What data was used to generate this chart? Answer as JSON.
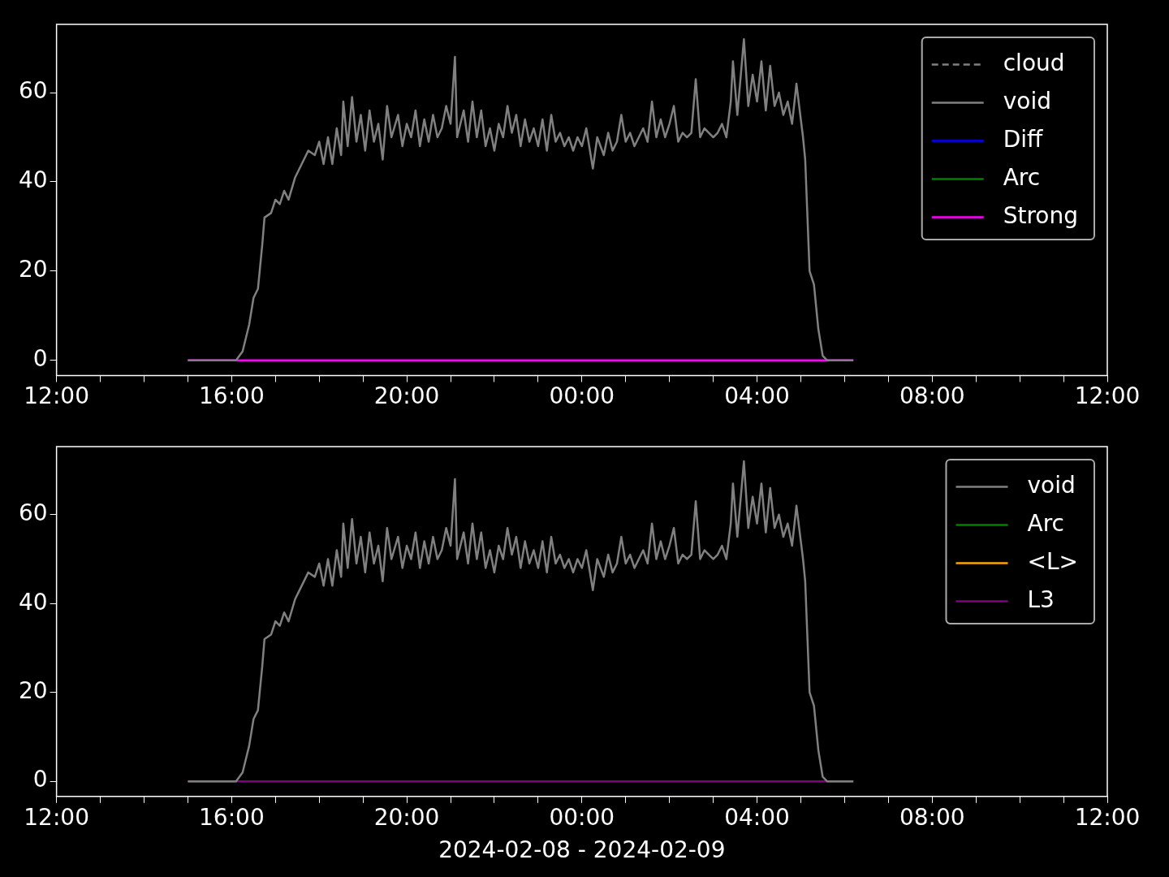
{
  "chart_data": [
    {
      "type": "line",
      "legend": "top right",
      "ylim": [
        -3.4,
        75.3
      ],
      "yticks": [
        0,
        20,
        40,
        60
      ],
      "xlim": [
        "2024-02-08T12:00",
        "2024-02-09T12:00"
      ],
      "xticks": [
        {
          "value": "2024-02-08T12:00",
          "label": "12:00"
        },
        {
          "value": "2024-02-08T13:00",
          "label": null
        },
        {
          "value": "2024-02-08T14:00",
          "label": null
        },
        {
          "value": "2024-02-08T15:00",
          "label": null
        },
        {
          "value": "2024-02-08T16:00",
          "label": "16:00"
        },
        {
          "value": "2024-02-08T17:00",
          "label": null
        },
        {
          "value": "2024-02-08T18:00",
          "label": null
        },
        {
          "value": "2024-02-08T19:00",
          "label": null
        },
        {
          "value": "2024-02-08T20:00",
          "label": "20:00"
        },
        {
          "value": "2024-02-08T21:00",
          "label": null
        },
        {
          "value": "2024-02-08T22:00",
          "label": null
        },
        {
          "value": "2024-02-08T23:00",
          "label": null
        },
        {
          "value": "2024-02-09T00:00",
          "label": "00:00"
        },
        {
          "value": "2024-02-09T01:00",
          "label": null
        },
        {
          "value": "2024-02-09T02:00",
          "label": null
        },
        {
          "value": "2024-02-09T03:00",
          "label": null
        },
        {
          "value": "2024-02-09T04:00",
          "label": "04:00"
        },
        {
          "value": "2024-02-09T05:00",
          "label": null
        },
        {
          "value": "2024-02-09T06:00",
          "label": null
        },
        {
          "value": "2024-02-09T07:00",
          "label": null
        },
        {
          "value": "2024-02-09T08:00",
          "label": "08:00"
        },
        {
          "value": "2024-02-09T09:00",
          "label": null
        },
        {
          "value": "2024-02-09T10:00",
          "label": null
        },
        {
          "value": "2024-02-09T11:00",
          "label": null
        },
        {
          "value": "2024-02-09T12:00",
          "label": "12:00"
        }
      ],
      "series": [
        {
          "name": "cloud",
          "color": "#808080",
          "line_style": "dashed"
        },
        {
          "name": "void",
          "color": "#808080",
          "x": [
            "2024-02-08T15:00",
            "2024-02-08T16:06",
            "2024-02-08T16:15",
            "2024-02-08T16:24",
            "2024-02-08T16:30",
            "2024-02-08T16:36",
            "2024-02-08T16:42",
            "2024-02-08T16:45",
            "2024-02-08T16:54",
            "2024-02-08T17:00",
            "2024-02-08T17:06",
            "2024-02-08T17:12",
            "2024-02-08T17:18",
            "2024-02-08T17:27",
            "2024-02-08T17:36",
            "2024-02-08T17:45",
            "2024-02-08T17:54",
            "2024-02-08T18:00",
            "2024-02-08T18:06",
            "2024-02-08T18:12",
            "2024-02-08T18:18",
            "2024-02-08T18:24",
            "2024-02-08T18:30",
            "2024-02-08T18:33",
            "2024-02-08T18:39",
            "2024-02-08T18:45",
            "2024-02-08T18:51",
            "2024-02-08T18:57",
            "2024-02-08T19:03",
            "2024-02-08T19:09",
            "2024-02-08T19:15",
            "2024-02-08T19:21",
            "2024-02-08T19:27",
            "2024-02-08T19:33",
            "2024-02-08T19:39",
            "2024-02-08T19:48",
            "2024-02-08T19:54",
            "2024-02-08T20:00",
            "2024-02-08T20:06",
            "2024-02-08T20:12",
            "2024-02-08T20:18",
            "2024-02-08T20:24",
            "2024-02-08T20:30",
            "2024-02-08T20:36",
            "2024-02-08T20:42",
            "2024-02-08T20:48",
            "2024-02-08T20:54",
            "2024-02-08T21:00",
            "2024-02-08T21:06",
            "2024-02-08T21:09",
            "2024-02-08T21:18",
            "2024-02-08T21:24",
            "2024-02-08T21:30",
            "2024-02-08T21:36",
            "2024-02-08T21:42",
            "2024-02-08T21:48",
            "2024-02-08T21:54",
            "2024-02-08T22:00",
            "2024-02-08T22:06",
            "2024-02-08T22:12",
            "2024-02-08T22:18",
            "2024-02-08T22:24",
            "2024-02-08T22:30",
            "2024-02-08T22:36",
            "2024-02-08T22:42",
            "2024-02-08T22:48",
            "2024-02-08T22:54",
            "2024-02-08T23:00",
            "2024-02-08T23:06",
            "2024-02-08T23:12",
            "2024-02-08T23:18",
            "2024-02-08T23:24",
            "2024-02-08T23:30",
            "2024-02-08T23:36",
            "2024-02-08T23:42",
            "2024-02-08T23:48",
            "2024-02-08T23:54",
            "2024-02-09T00:00",
            "2024-02-09T00:06",
            "2024-02-09T00:15",
            "2024-02-09T00:21",
            "2024-02-09T00:30",
            "2024-02-09T00:36",
            "2024-02-09T00:42",
            "2024-02-09T00:48",
            "2024-02-09T00:54",
            "2024-02-09T01:00",
            "2024-02-09T01:06",
            "2024-02-09T01:12",
            "2024-02-09T01:18",
            "2024-02-09T01:24",
            "2024-02-09T01:30",
            "2024-02-09T01:36",
            "2024-02-09T01:42",
            "2024-02-09T01:48",
            "2024-02-09T01:54",
            "2024-02-09T02:00",
            "2024-02-09T02:06",
            "2024-02-09T02:12",
            "2024-02-09T02:18",
            "2024-02-09T02:24",
            "2024-02-09T02:30",
            "2024-02-09T02:36",
            "2024-02-09T02:42",
            "2024-02-09T02:48",
            "2024-02-09T02:54",
            "2024-02-09T03:00",
            "2024-02-09T03:06",
            "2024-02-09T03:12",
            "2024-02-09T03:18",
            "2024-02-09T03:24",
            "2024-02-09T03:27",
            "2024-02-09T03:33",
            "2024-02-09T03:42",
            "2024-02-09T03:48",
            "2024-02-09T03:54",
            "2024-02-09T04:00",
            "2024-02-09T04:06",
            "2024-02-09T04:12",
            "2024-02-09T04:18",
            "2024-02-09T04:24",
            "2024-02-09T04:30",
            "2024-02-09T04:36",
            "2024-02-09T04:42",
            "2024-02-09T04:48",
            "2024-02-09T04:54",
            "2024-02-09T05:00",
            "2024-02-09T05:03",
            "2024-02-09T05:06",
            "2024-02-09T05:12",
            "2024-02-09T05:18",
            "2024-02-09T05:24",
            "2024-02-09T05:30",
            "2024-02-09T05:36",
            "2024-02-09T06:12"
          ],
          "values": [
            0,
            0,
            2,
            8,
            14,
            16,
            26,
            32,
            33,
            36,
            35,
            38,
            36,
            41,
            44,
            47,
            46,
            49,
            44,
            50,
            44,
            52,
            46,
            58,
            48,
            59,
            49,
            55,
            47,
            56,
            49,
            53,
            45,
            57,
            50,
            55,
            48,
            53,
            50,
            56,
            48,
            54,
            49,
            55,
            50,
            52,
            57,
            53,
            68,
            50,
            56,
            49,
            58,
            50,
            56,
            48,
            52,
            47,
            53,
            50,
            57,
            51,
            55,
            48,
            54,
            49,
            52,
            48,
            54,
            47,
            55,
            49,
            51,
            48,
            50,
            47,
            50,
            48,
            52,
            43,
            50,
            46,
            51,
            47,
            49,
            55,
            49,
            51,
            48,
            50,
            52,
            49,
            58,
            50,
            54,
            50,
            53,
            57,
            49,
            51,
            50,
            51,
            63,
            50,
            52,
            51,
            50,
            51,
            53,
            50,
            58,
            67,
            55,
            72,
            57,
            64,
            58,
            67,
            56,
            66,
            57,
            60,
            55,
            58,
            53,
            62,
            54,
            50,
            45,
            20,
            17,
            7,
            1,
            0,
            0
          ]
        },
        {
          "name": "Diff",
          "color": "#0000ff"
        },
        {
          "name": "Arc",
          "color": "#008000"
        },
        {
          "name": "Strong",
          "color": "#ff00ff",
          "x": [
            "2024-02-08T15:00",
            "2024-02-09T06:12"
          ],
          "values": [
            0,
            0
          ]
        }
      ]
    },
    {
      "type": "line",
      "legend": "top right",
      "xlabel": "2024-02-08 - 2024-02-09",
      "ylim": [
        -3.4,
        75.3
      ],
      "yticks": [
        0,
        20,
        40,
        60
      ],
      "xlim": [
        "2024-02-08T12:00",
        "2024-02-09T12:00"
      ],
      "xticks": [
        {
          "value": "2024-02-08T12:00",
          "label": "12:00"
        },
        {
          "value": "2024-02-08T13:00",
          "label": null
        },
        {
          "value": "2024-02-08T14:00",
          "label": null
        },
        {
          "value": "2024-02-08T15:00",
          "label": null
        },
        {
          "value": "2024-02-08T16:00",
          "label": "16:00"
        },
        {
          "value": "2024-02-08T17:00",
          "label": null
        },
        {
          "value": "2024-02-08T18:00",
          "label": null
        },
        {
          "value": "2024-02-08T19:00",
          "label": null
        },
        {
          "value": "2024-02-08T20:00",
          "label": "20:00"
        },
        {
          "value": "2024-02-08T21:00",
          "label": null
        },
        {
          "value": "2024-02-08T22:00",
          "label": null
        },
        {
          "value": "2024-02-08T23:00",
          "label": null
        },
        {
          "value": "2024-02-09T00:00",
          "label": "00:00"
        },
        {
          "value": "2024-02-09T01:00",
          "label": null
        },
        {
          "value": "2024-02-09T02:00",
          "label": null
        },
        {
          "value": "2024-02-09T03:00",
          "label": null
        },
        {
          "value": "2024-02-09T04:00",
          "label": "04:00"
        },
        {
          "value": "2024-02-09T05:00",
          "label": null
        },
        {
          "value": "2024-02-09T06:00",
          "label": null
        },
        {
          "value": "2024-02-09T07:00",
          "label": null
        },
        {
          "value": "2024-02-09T08:00",
          "label": "08:00"
        },
        {
          "value": "2024-02-09T09:00",
          "label": null
        },
        {
          "value": "2024-02-09T10:00",
          "label": null
        },
        {
          "value": "2024-02-09T11:00",
          "label": null
        },
        {
          "value": "2024-02-09T12:00",
          "label": "12:00"
        }
      ],
      "series": [
        {
          "name": "void",
          "color": "#808080",
          "x": [
            "2024-02-08T15:00",
            "2024-02-08T16:06",
            "2024-02-08T16:15",
            "2024-02-08T16:24",
            "2024-02-08T16:30",
            "2024-02-08T16:36",
            "2024-02-08T16:42",
            "2024-02-08T16:45",
            "2024-02-08T16:54",
            "2024-02-08T17:00",
            "2024-02-08T17:06",
            "2024-02-08T17:12",
            "2024-02-08T17:18",
            "2024-02-08T17:27",
            "2024-02-08T17:36",
            "2024-02-08T17:45",
            "2024-02-08T17:54",
            "2024-02-08T18:00",
            "2024-02-08T18:06",
            "2024-02-08T18:12",
            "2024-02-08T18:18",
            "2024-02-08T18:24",
            "2024-02-08T18:30",
            "2024-02-08T18:33",
            "2024-02-08T18:39",
            "2024-02-08T18:45",
            "2024-02-08T18:51",
            "2024-02-08T18:57",
            "2024-02-08T19:03",
            "2024-02-08T19:09",
            "2024-02-08T19:15",
            "2024-02-08T19:21",
            "2024-02-08T19:27",
            "2024-02-08T19:33",
            "2024-02-08T19:39",
            "2024-02-08T19:48",
            "2024-02-08T19:54",
            "2024-02-08T20:00",
            "2024-02-08T20:06",
            "2024-02-08T20:12",
            "2024-02-08T20:18",
            "2024-02-08T20:24",
            "2024-02-08T20:30",
            "2024-02-08T20:36",
            "2024-02-08T20:42",
            "2024-02-08T20:48",
            "2024-02-08T20:54",
            "2024-02-08T21:00",
            "2024-02-08T21:06",
            "2024-02-08T21:09",
            "2024-02-08T21:18",
            "2024-02-08T21:24",
            "2024-02-08T21:30",
            "2024-02-08T21:36",
            "2024-02-08T21:42",
            "2024-02-08T21:48",
            "2024-02-08T21:54",
            "2024-02-08T22:00",
            "2024-02-08T22:06",
            "2024-02-08T22:12",
            "2024-02-08T22:18",
            "2024-02-08T22:24",
            "2024-02-08T22:30",
            "2024-02-08T22:36",
            "2024-02-08T22:42",
            "2024-02-08T22:48",
            "2024-02-08T22:54",
            "2024-02-08T23:00",
            "2024-02-08T23:06",
            "2024-02-08T23:12",
            "2024-02-08T23:18",
            "2024-02-08T23:24",
            "2024-02-08T23:30",
            "2024-02-08T23:36",
            "2024-02-08T23:42",
            "2024-02-08T23:48",
            "2024-02-08T23:54",
            "2024-02-09T00:00",
            "2024-02-09T00:06",
            "2024-02-09T00:15",
            "2024-02-09T00:21",
            "2024-02-09T00:30",
            "2024-02-09T00:36",
            "2024-02-09T00:42",
            "2024-02-09T00:48",
            "2024-02-09T00:54",
            "2024-02-09T01:00",
            "2024-02-09T01:06",
            "2024-02-09T01:12",
            "2024-02-09T01:18",
            "2024-02-09T01:24",
            "2024-02-09T01:30",
            "2024-02-09T01:36",
            "2024-02-09T01:42",
            "2024-02-09T01:48",
            "2024-02-09T01:54",
            "2024-02-09T02:00",
            "2024-02-09T02:06",
            "2024-02-09T02:12",
            "2024-02-09T02:18",
            "2024-02-09T02:24",
            "2024-02-09T02:30",
            "2024-02-09T02:36",
            "2024-02-09T02:42",
            "2024-02-09T02:48",
            "2024-02-09T02:54",
            "2024-02-09T03:00",
            "2024-02-09T03:06",
            "2024-02-09T03:12",
            "2024-02-09T03:18",
            "2024-02-09T03:24",
            "2024-02-09T03:27",
            "2024-02-09T03:33",
            "2024-02-09T03:42",
            "2024-02-09T03:48",
            "2024-02-09T03:54",
            "2024-02-09T04:00",
            "2024-02-09T04:06",
            "2024-02-09T04:12",
            "2024-02-09T04:18",
            "2024-02-09T04:24",
            "2024-02-09T04:30",
            "2024-02-09T04:36",
            "2024-02-09T04:42",
            "2024-02-09T04:48",
            "2024-02-09T04:54",
            "2024-02-09T05:00",
            "2024-02-09T05:03",
            "2024-02-09T05:06",
            "2024-02-09T05:12",
            "2024-02-09T05:18",
            "2024-02-09T05:24",
            "2024-02-09T05:30",
            "2024-02-09T05:36",
            "2024-02-09T06:12"
          ],
          "values": [
            0,
            0,
            2,
            8,
            14,
            16,
            26,
            32,
            33,
            36,
            35,
            38,
            36,
            41,
            44,
            47,
            46,
            49,
            44,
            50,
            44,
            52,
            46,
            58,
            48,
            59,
            49,
            55,
            47,
            56,
            49,
            53,
            45,
            57,
            50,
            55,
            48,
            53,
            50,
            56,
            48,
            54,
            49,
            55,
            50,
            52,
            57,
            53,
            68,
            50,
            56,
            49,
            58,
            50,
            56,
            48,
            52,
            47,
            53,
            50,
            57,
            51,
            55,
            48,
            54,
            49,
            52,
            48,
            54,
            47,
            55,
            49,
            51,
            48,
            50,
            47,
            50,
            48,
            52,
            43,
            50,
            46,
            51,
            47,
            49,
            55,
            49,
            51,
            48,
            50,
            52,
            49,
            58,
            50,
            54,
            50,
            53,
            57,
            49,
            51,
            50,
            51,
            63,
            50,
            52,
            51,
            50,
            51,
            53,
            50,
            58,
            67,
            55,
            72,
            57,
            64,
            58,
            67,
            56,
            66,
            57,
            60,
            55,
            58,
            53,
            62,
            54,
            50,
            45,
            20,
            17,
            7,
            1,
            0,
            0
          ]
        },
        {
          "name": "Arc",
          "color": "#008000"
        },
        {
          "name": "<L>",
          "color": "#ffa500"
        },
        {
          "name": "L3",
          "color": "#800080",
          "x": [
            "2024-02-08T15:00",
            "2024-02-09T06:12"
          ],
          "values": [
            0,
            0
          ]
        }
      ]
    }
  ]
}
